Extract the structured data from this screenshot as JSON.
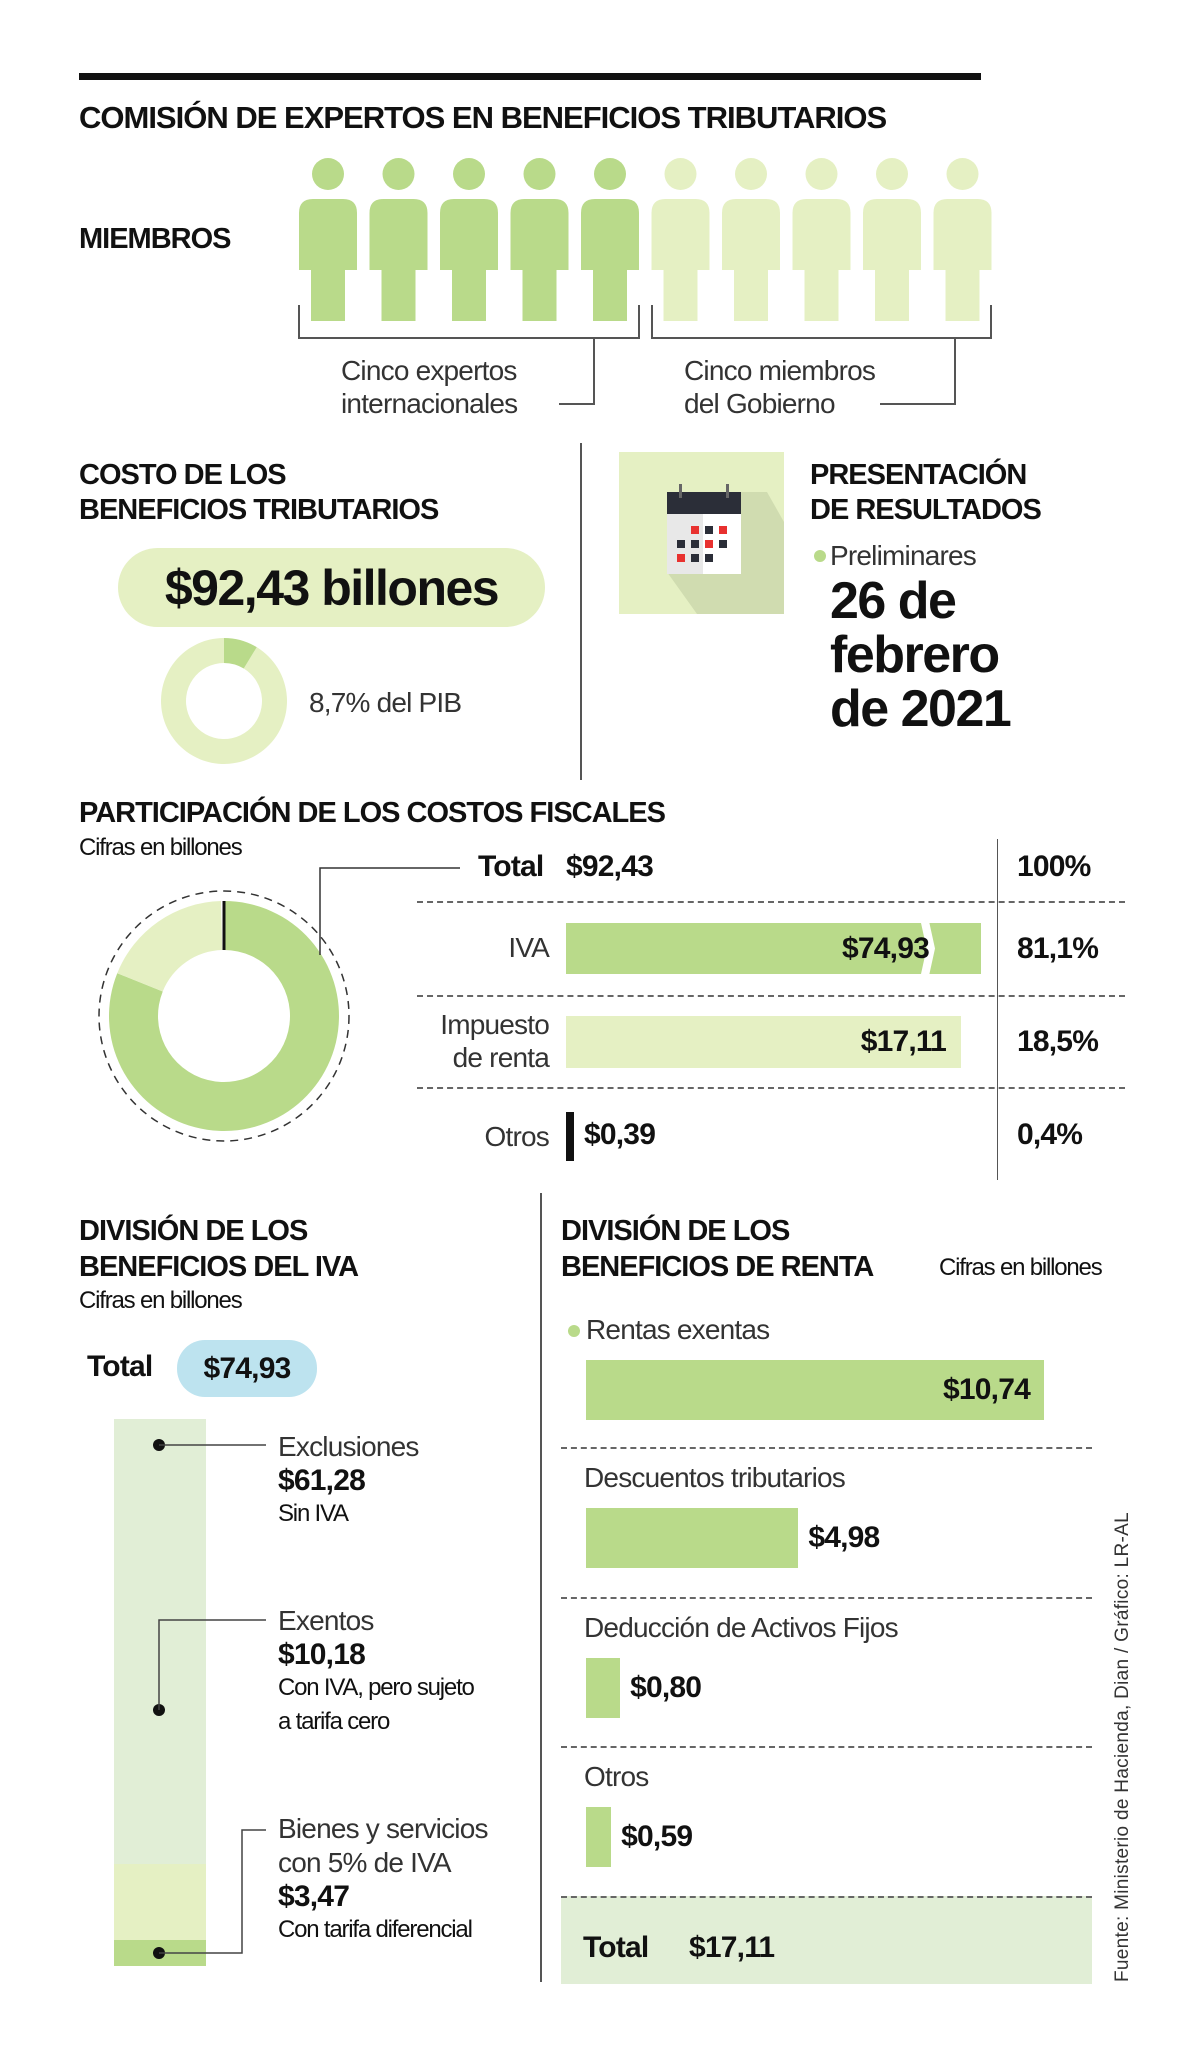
{
  "colors": {
    "green": "#b9da8a",
    "light_green": "#e5f0c3",
    "pale_green": "#e1eed6",
    "blue": "#bde3ef",
    "black": "#111111",
    "red": "#e8312f"
  },
  "header": {
    "title": "COMISIÓN DE EXPERTOS EN BENEFICIOS TRIBUTARIOS"
  },
  "members": {
    "label": "MIEMBROS",
    "experts_count": 5,
    "government_count": 5,
    "experts_caption": [
      "Cinco expertos",
      "internacionales"
    ],
    "government_caption": [
      "Cinco miembros",
      "del Gobierno"
    ]
  },
  "cost": {
    "title": [
      "COSTO DE LOS",
      "BENEFICIOS TRIBUTARIOS"
    ],
    "amount": "$92,43 billones",
    "pib_label": "8,7% del PIB",
    "pib_percent": 8.7
  },
  "presentation": {
    "title": [
      "PRESENTACIÓN",
      "DE RESULTADOS"
    ],
    "icon": "calendar-icon",
    "bullet": "Preliminares",
    "date": [
      "26 de",
      "febrero",
      "de 2021"
    ]
  },
  "chart_data": [
    {
      "type": "pie",
      "title": "",
      "values": [
        8.7,
        91.3
      ],
      "categories": [
        "PIB",
        ""
      ]
    },
    {
      "type": "bar",
      "title": "PARTICIPACIÓN DE LOS COSTOS FISCALES",
      "subtitle": "Cifras en billones",
      "total": {
        "label": "Total",
        "value": "$92,43",
        "percent": "100%"
      },
      "categories": [
        "IVA",
        "Impuesto de renta",
        "Otros"
      ],
      "category_lines": [
        [
          "IVA"
        ],
        [
          "Impuesto",
          "de renta"
        ],
        [
          "Otros"
        ]
      ],
      "values": [
        74.93,
        17.11,
        0.39
      ],
      "value_labels": [
        "$74,93",
        "$17,11",
        "$0,39"
      ],
      "percents": [
        "81,1%",
        "18,5%",
        "0,4%"
      ],
      "percent_values": [
        81.1,
        18.5,
        0.4
      ]
    },
    {
      "type": "bar",
      "stacked": true,
      "title": "DIVISIÓN DE LOS BENEFICIOS DEL IVA",
      "title_lines": [
        "DIVISIÓN DE LOS",
        "BENEFICIOS DEL IVA"
      ],
      "subtitle": "Cifras en billones",
      "total": {
        "label": "Total",
        "value": "$74,93"
      },
      "categories": [
        "Exclusiones",
        "Exentos",
        "Bienes y servicios con 5% de IVA"
      ],
      "category_lines": [
        [
          "Exclusiones"
        ],
        [
          "Exentos"
        ],
        [
          "Bienes y servicios",
          "con 5% de IVA"
        ]
      ],
      "values": [
        61.28,
        10.18,
        3.47
      ],
      "value_labels": [
        "$61,28",
        "$10,18",
        "$3,47"
      ],
      "notes": [
        [
          "Sin IVA"
        ],
        [
          "Con IVA, pero sujeto",
          "a tarifa cero"
        ],
        [
          "Con tarifa diferencial"
        ]
      ]
    },
    {
      "type": "bar",
      "title": "DIVISIÓN DE LOS BENEFICIOS DE RENTA",
      "title_lines": [
        "DIVISIÓN DE LOS",
        "BENEFICIOS DE RENTA"
      ],
      "subtitle": "Cifras en billones",
      "categories": [
        "Rentas exentas",
        "Descuentos tributarios",
        "Deducción de Activos Fijos",
        "Otros"
      ],
      "values": [
        10.74,
        4.98,
        0.8,
        0.59
      ],
      "value_labels": [
        "$10,74",
        "$4,98",
        "$0,80",
        "$0,59"
      ],
      "total": {
        "label": "Total",
        "value": "$17,11"
      }
    }
  ],
  "source": "Fuente: Ministerio de Hacienda, Dian / Gráfico: LR-AL"
}
